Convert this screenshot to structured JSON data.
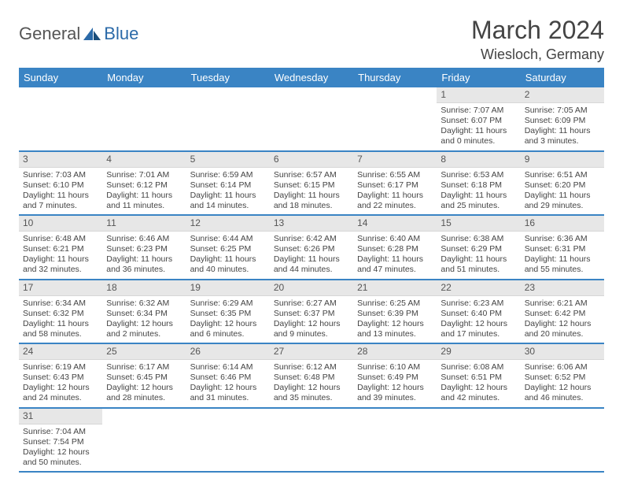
{
  "logo": {
    "general": "General",
    "blue": "Blue"
  },
  "title": {
    "month": "March 2024",
    "location": "Wiesloch, Germany"
  },
  "colors": {
    "header_bg": "#3a84c4",
    "header_text": "#ffffff",
    "daynum_bg": "#e7e7e7",
    "row_sep": "#3a84c4",
    "body_text": "#444444",
    "logo_gray": "#555555",
    "logo_blue": "#2b6aa8"
  },
  "columns": [
    "Sunday",
    "Monday",
    "Tuesday",
    "Wednesday",
    "Thursday",
    "Friday",
    "Saturday"
  ],
  "weeks": [
    [
      {
        "empty": true
      },
      {
        "empty": true
      },
      {
        "empty": true
      },
      {
        "empty": true
      },
      {
        "empty": true
      },
      {
        "n": "1",
        "sr": "Sunrise: 7:07 AM",
        "ss": "Sunset: 6:07 PM",
        "d1": "Daylight: 11 hours",
        "d2": "and 0 minutes."
      },
      {
        "n": "2",
        "sr": "Sunrise: 7:05 AM",
        "ss": "Sunset: 6:09 PM",
        "d1": "Daylight: 11 hours",
        "d2": "and 3 minutes."
      }
    ],
    [
      {
        "n": "3",
        "sr": "Sunrise: 7:03 AM",
        "ss": "Sunset: 6:10 PM",
        "d1": "Daylight: 11 hours",
        "d2": "and 7 minutes."
      },
      {
        "n": "4",
        "sr": "Sunrise: 7:01 AM",
        "ss": "Sunset: 6:12 PM",
        "d1": "Daylight: 11 hours",
        "d2": "and 11 minutes."
      },
      {
        "n": "5",
        "sr": "Sunrise: 6:59 AM",
        "ss": "Sunset: 6:14 PM",
        "d1": "Daylight: 11 hours",
        "d2": "and 14 minutes."
      },
      {
        "n": "6",
        "sr": "Sunrise: 6:57 AM",
        "ss": "Sunset: 6:15 PM",
        "d1": "Daylight: 11 hours",
        "d2": "and 18 minutes."
      },
      {
        "n": "7",
        "sr": "Sunrise: 6:55 AM",
        "ss": "Sunset: 6:17 PM",
        "d1": "Daylight: 11 hours",
        "d2": "and 22 minutes."
      },
      {
        "n": "8",
        "sr": "Sunrise: 6:53 AM",
        "ss": "Sunset: 6:18 PM",
        "d1": "Daylight: 11 hours",
        "d2": "and 25 minutes."
      },
      {
        "n": "9",
        "sr": "Sunrise: 6:51 AM",
        "ss": "Sunset: 6:20 PM",
        "d1": "Daylight: 11 hours",
        "d2": "and 29 minutes."
      }
    ],
    [
      {
        "n": "10",
        "sr": "Sunrise: 6:48 AM",
        "ss": "Sunset: 6:21 PM",
        "d1": "Daylight: 11 hours",
        "d2": "and 32 minutes."
      },
      {
        "n": "11",
        "sr": "Sunrise: 6:46 AM",
        "ss": "Sunset: 6:23 PM",
        "d1": "Daylight: 11 hours",
        "d2": "and 36 minutes."
      },
      {
        "n": "12",
        "sr": "Sunrise: 6:44 AM",
        "ss": "Sunset: 6:25 PM",
        "d1": "Daylight: 11 hours",
        "d2": "and 40 minutes."
      },
      {
        "n": "13",
        "sr": "Sunrise: 6:42 AM",
        "ss": "Sunset: 6:26 PM",
        "d1": "Daylight: 11 hours",
        "d2": "and 44 minutes."
      },
      {
        "n": "14",
        "sr": "Sunrise: 6:40 AM",
        "ss": "Sunset: 6:28 PM",
        "d1": "Daylight: 11 hours",
        "d2": "and 47 minutes."
      },
      {
        "n": "15",
        "sr": "Sunrise: 6:38 AM",
        "ss": "Sunset: 6:29 PM",
        "d1": "Daylight: 11 hours",
        "d2": "and 51 minutes."
      },
      {
        "n": "16",
        "sr": "Sunrise: 6:36 AM",
        "ss": "Sunset: 6:31 PM",
        "d1": "Daylight: 11 hours",
        "d2": "and 55 minutes."
      }
    ],
    [
      {
        "n": "17",
        "sr": "Sunrise: 6:34 AM",
        "ss": "Sunset: 6:32 PM",
        "d1": "Daylight: 11 hours",
        "d2": "and 58 minutes."
      },
      {
        "n": "18",
        "sr": "Sunrise: 6:32 AM",
        "ss": "Sunset: 6:34 PM",
        "d1": "Daylight: 12 hours",
        "d2": "and 2 minutes."
      },
      {
        "n": "19",
        "sr": "Sunrise: 6:29 AM",
        "ss": "Sunset: 6:35 PM",
        "d1": "Daylight: 12 hours",
        "d2": "and 6 minutes."
      },
      {
        "n": "20",
        "sr": "Sunrise: 6:27 AM",
        "ss": "Sunset: 6:37 PM",
        "d1": "Daylight: 12 hours",
        "d2": "and 9 minutes."
      },
      {
        "n": "21",
        "sr": "Sunrise: 6:25 AM",
        "ss": "Sunset: 6:39 PM",
        "d1": "Daylight: 12 hours",
        "d2": "and 13 minutes."
      },
      {
        "n": "22",
        "sr": "Sunrise: 6:23 AM",
        "ss": "Sunset: 6:40 PM",
        "d1": "Daylight: 12 hours",
        "d2": "and 17 minutes."
      },
      {
        "n": "23",
        "sr": "Sunrise: 6:21 AM",
        "ss": "Sunset: 6:42 PM",
        "d1": "Daylight: 12 hours",
        "d2": "and 20 minutes."
      }
    ],
    [
      {
        "n": "24",
        "sr": "Sunrise: 6:19 AM",
        "ss": "Sunset: 6:43 PM",
        "d1": "Daylight: 12 hours",
        "d2": "and 24 minutes."
      },
      {
        "n": "25",
        "sr": "Sunrise: 6:17 AM",
        "ss": "Sunset: 6:45 PM",
        "d1": "Daylight: 12 hours",
        "d2": "and 28 minutes."
      },
      {
        "n": "26",
        "sr": "Sunrise: 6:14 AM",
        "ss": "Sunset: 6:46 PM",
        "d1": "Daylight: 12 hours",
        "d2": "and 31 minutes."
      },
      {
        "n": "27",
        "sr": "Sunrise: 6:12 AM",
        "ss": "Sunset: 6:48 PM",
        "d1": "Daylight: 12 hours",
        "d2": "and 35 minutes."
      },
      {
        "n": "28",
        "sr": "Sunrise: 6:10 AM",
        "ss": "Sunset: 6:49 PM",
        "d1": "Daylight: 12 hours",
        "d2": "and 39 minutes."
      },
      {
        "n": "29",
        "sr": "Sunrise: 6:08 AM",
        "ss": "Sunset: 6:51 PM",
        "d1": "Daylight: 12 hours",
        "d2": "and 42 minutes."
      },
      {
        "n": "30",
        "sr": "Sunrise: 6:06 AM",
        "ss": "Sunset: 6:52 PM",
        "d1": "Daylight: 12 hours",
        "d2": "and 46 minutes."
      }
    ],
    [
      {
        "n": "31",
        "sr": "Sunrise: 7:04 AM",
        "ss": "Sunset: 7:54 PM",
        "d1": "Daylight: 12 hours",
        "d2": "and 50 minutes."
      },
      {
        "empty": true
      },
      {
        "empty": true
      },
      {
        "empty": true
      },
      {
        "empty": true
      },
      {
        "empty": true
      },
      {
        "empty": true
      }
    ]
  ]
}
